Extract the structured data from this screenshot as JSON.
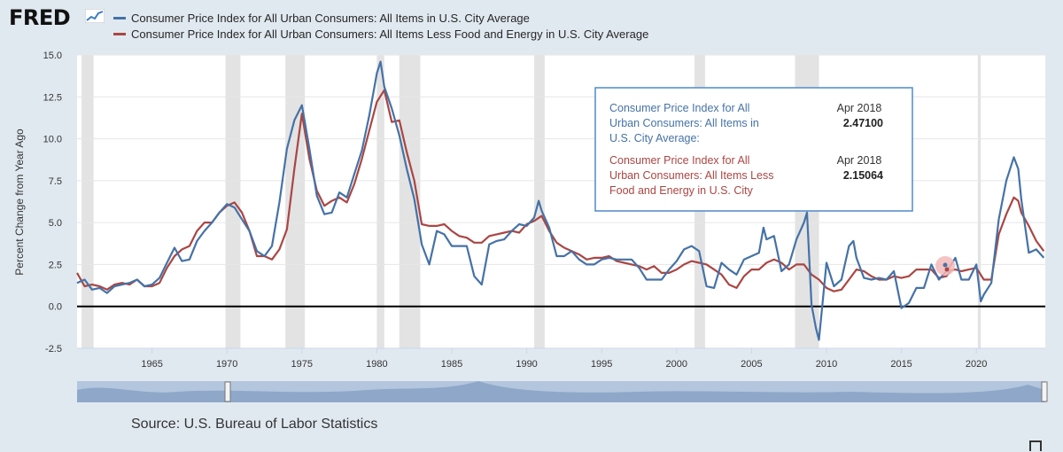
{
  "brand": {
    "name": "FRED"
  },
  "legend": [
    {
      "label": "Consumer Price Index for All Urban Consumers: All Items in U.S. City Average",
      "color": "#4572a7"
    },
    {
      "label": "Consumer Price Index for All Urban Consumers: All Items Less Food and Energy in U.S. City Average",
      "color": "#aa4643"
    }
  ],
  "source": "Source: U.S. Bureau of Labor Statistics",
  "tooltip": {
    "rows": [
      {
        "label": "Consumer Price Index for All Urban Consumers: All Items in U.S. City Average:",
        "date": "Apr 2018",
        "value": "2.47100",
        "color": "#4572a7"
      },
      {
        "label": "Consumer Price Index for All Urban Consumers: All Items Less Food and Energy in U.S. City Average:",
        "date": "Apr 2018",
        "value": "2.15064",
        "color": "#aa4643"
      }
    ]
  },
  "chart_data": {
    "type": "line",
    "title": "",
    "xlabel": "",
    "ylabel": "Percent Change from Year Ago",
    "xlim": [
      1960,
      2024.6
    ],
    "ylim": [
      -2.5,
      15
    ],
    "yticks": [
      -2.5,
      0.0,
      2.5,
      5.0,
      7.5,
      10.0,
      12.5,
      15.0
    ],
    "ytick_labels": [
      "-2.5",
      "0.0",
      "2.5",
      "5.0",
      "7.5",
      "10.0",
      "12.5",
      "15.0"
    ],
    "xticks": [
      1965,
      1970,
      1975,
      1980,
      1985,
      1990,
      1995,
      2000,
      2005,
      2010,
      2015,
      2020
    ],
    "xtick_labels": [
      "1965",
      "1970",
      "1975",
      "1980",
      "1985",
      "1990",
      "1995",
      "2000",
      "2005",
      "2010",
      "2015",
      "2020"
    ],
    "recessions": [
      [
        1960.3,
        1961.1
      ],
      [
        1969.9,
        1970.9
      ],
      [
        1973.9,
        1975.2
      ],
      [
        1980.0,
        1980.5
      ],
      [
        1981.5,
        1982.9
      ],
      [
        1990.5,
        1991.2
      ],
      [
        2001.2,
        2001.9
      ],
      [
        2007.9,
        2009.5
      ],
      [
        2020.1,
        2020.3
      ]
    ],
    "zero_line": 0,
    "series": [
      {
        "name": "Consumer Price Index for All Urban Consumers: All Items in U.S. City Average",
        "color": "#4572a7",
        "x": [
          1960.0,
          1960.5,
          1961.0,
          1961.5,
          1962.0,
          1962.5,
          1963.0,
          1963.5,
          1964.0,
          1964.5,
          1965.0,
          1965.5,
          1966.0,
          1966.5,
          1967.0,
          1967.5,
          1968.0,
          1968.5,
          1969.0,
          1969.5,
          1970.0,
          1970.5,
          1971.0,
          1971.5,
          1972.0,
          1972.5,
          1973.0,
          1973.5,
          1974.0,
          1974.5,
          1975.0,
          1975.5,
          1976.0,
          1976.5,
          1977.0,
          1977.5,
          1978.0,
          1978.5,
          1979.0,
          1979.5,
          1980.0,
          1980.25,
          1980.5,
          1981.0,
          1981.5,
          1982.0,
          1982.5,
          1983.0,
          1983.5,
          1984.0,
          1984.5,
          1985.0,
          1985.5,
          1986.0,
          1986.5,
          1987.0,
          1987.5,
          1988.0,
          1988.5,
          1989.0,
          1989.5,
          1990.0,
          1990.5,
          1990.8,
          1991.0,
          1991.5,
          1992.0,
          1992.5,
          1993.0,
          1993.5,
          1994.0,
          1994.5,
          1995.0,
          1995.5,
          1996.0,
          1996.5,
          1997.0,
          1997.5,
          1998.0,
          1998.5,
          1999.0,
          1999.5,
          2000.0,
          2000.5,
          2001.0,
          2001.5,
          2002.0,
          2002.5,
          2003.0,
          2003.5,
          2004.0,
          2004.5,
          2005.0,
          2005.5,
          2005.8,
          2006.0,
          2006.5,
          2007.0,
          2007.5,
          2008.0,
          2008.5,
          2008.7,
          2009.0,
          2009.3,
          2009.5,
          2010.0,
          2010.5,
          2011.0,
          2011.5,
          2011.8,
          2012.0,
          2012.5,
          2013.0,
          2013.5,
          2014.0,
          2014.5,
          2015.0,
          2015.5,
          2016.0,
          2016.5,
          2017.0,
          2017.5,
          2018.0,
          2018.3,
          2018.6,
          2019.0,
          2019.5,
          2020.0,
          2020.3,
          2020.5,
          2021.0,
          2021.5,
          2022.0,
          2022.5,
          2022.8,
          2023.0,
          2023.5,
          2024.0,
          2024.5
        ],
        "y": [
          1.4,
          1.6,
          1.0,
          1.1,
          0.8,
          1.2,
          1.3,
          1.4,
          1.6,
          1.2,
          1.3,
          1.7,
          2.6,
          3.5,
          2.7,
          2.8,
          3.9,
          4.5,
          5.0,
          5.6,
          6.1,
          5.9,
          5.2,
          4.5,
          3.3,
          3.0,
          3.6,
          6.2,
          9.4,
          11.1,
          12.0,
          9.4,
          6.6,
          5.5,
          5.6,
          6.8,
          6.5,
          7.9,
          9.3,
          11.4,
          13.9,
          14.6,
          13.1,
          11.8,
          10.2,
          8.2,
          6.4,
          3.7,
          2.5,
          4.5,
          4.3,
          3.6,
          3.6,
          3.6,
          1.8,
          1.3,
          3.7,
          3.9,
          4.0,
          4.5,
          4.9,
          4.8,
          5.3,
          6.3,
          5.7,
          4.7,
          3.0,
          3.0,
          3.3,
          2.8,
          2.5,
          2.5,
          2.8,
          2.9,
          2.8,
          2.8,
          2.8,
          2.3,
          1.6,
          1.6,
          1.6,
          2.2,
          2.7,
          3.4,
          3.6,
          3.3,
          1.2,
          1.1,
          2.6,
          2.2,
          1.9,
          2.8,
          3.0,
          3.2,
          4.7,
          4.0,
          4.2,
          2.1,
          2.5,
          4.0,
          5.0,
          5.6,
          0.1,
          -1.3,
          -2.0,
          2.6,
          1.2,
          1.6,
          3.6,
          3.9,
          2.9,
          1.7,
          1.6,
          1.7,
          1.6,
          2.1,
          -0.1,
          0.2,
          1.1,
          1.1,
          2.5,
          1.6,
          2.1,
          2.47,
          2.9,
          1.6,
          1.6,
          2.5,
          0.3,
          0.7,
          1.4,
          5.2,
          7.5,
          8.9,
          8.2,
          6.4,
          3.2,
          3.4,
          2.9
        ]
      },
      {
        "name": "Consumer Price Index for All Urban Consumers: All Items Less Food and Energy in U.S. City Average",
        "color": "#aa4643",
        "x": [
          1960.0,
          1960.5,
          1961.0,
          1961.5,
          1962.0,
          1962.5,
          1963.0,
          1963.5,
          1964.0,
          1964.5,
          1965.0,
          1965.5,
          1966.0,
          1966.5,
          1967.0,
          1967.5,
          1968.0,
          1968.5,
          1969.0,
          1969.5,
          1970.0,
          1970.5,
          1971.0,
          1971.5,
          1972.0,
          1972.5,
          1973.0,
          1973.5,
          1974.0,
          1974.5,
          1975.0,
          1975.5,
          1976.0,
          1976.5,
          1977.0,
          1977.5,
          1978.0,
          1978.5,
          1979.0,
          1979.5,
          1980.0,
          1980.5,
          1981.0,
          1981.5,
          1982.0,
          1982.5,
          1983.0,
          1983.5,
          1984.0,
          1984.5,
          1985.0,
          1985.5,
          1986.0,
          1986.5,
          1987.0,
          1987.5,
          1988.0,
          1988.5,
          1989.0,
          1989.5,
          1990.0,
          1990.5,
          1991.0,
          1991.5,
          1992.0,
          1992.5,
          1993.0,
          1993.5,
          1994.0,
          1994.5,
          1995.0,
          1995.5,
          1996.0,
          1996.5,
          1997.0,
          1997.5,
          1998.0,
          1998.5,
          1999.0,
          1999.5,
          2000.0,
          2000.5,
          2001.0,
          2001.5,
          2002.0,
          2002.5,
          2003.0,
          2003.5,
          2004.0,
          2004.5,
          2005.0,
          2005.5,
          2006.0,
          2006.5,
          2007.0,
          2007.5,
          2008.0,
          2008.5,
          2009.0,
          2009.5,
          2010.0,
          2010.5,
          2011.0,
          2011.5,
          2012.0,
          2012.5,
          2013.0,
          2013.5,
          2014.0,
          2014.5,
          2015.0,
          2015.5,
          2016.0,
          2016.5,
          2017.0,
          2017.5,
          2018.0,
          2018.3,
          2018.6,
          2019.0,
          2019.5,
          2020.0,
          2020.5,
          2021.0,
          2021.5,
          2022.0,
          2022.5,
          2022.8,
          2023.0,
          2023.5,
          2024.0,
          2024.5
        ],
        "y": [
          2.0,
          1.2,
          1.3,
          1.2,
          1.0,
          1.3,
          1.4,
          1.3,
          1.6,
          1.2,
          1.2,
          1.4,
          2.3,
          3.0,
          3.4,
          3.6,
          4.5,
          5.0,
          5.0,
          5.6,
          6.0,
          6.2,
          5.6,
          4.5,
          3.0,
          3.0,
          2.8,
          3.4,
          4.6,
          8.2,
          11.5,
          8.8,
          6.9,
          6.0,
          6.3,
          6.5,
          6.2,
          7.3,
          8.8,
          10.5,
          12.2,
          12.9,
          11.0,
          11.1,
          9.2,
          7.5,
          4.9,
          4.8,
          4.8,
          4.9,
          4.5,
          4.2,
          4.1,
          3.8,
          3.8,
          4.2,
          4.3,
          4.4,
          4.5,
          4.4,
          4.9,
          5.1,
          5.4,
          4.5,
          3.8,
          3.5,
          3.3,
          3.1,
          2.8,
          2.9,
          2.9,
          3.0,
          2.7,
          2.6,
          2.5,
          2.4,
          2.2,
          2.4,
          2.0,
          2.0,
          2.2,
          2.5,
          2.7,
          2.6,
          2.5,
          2.2,
          1.9,
          1.3,
          1.1,
          1.8,
          2.2,
          2.2,
          2.6,
          2.8,
          2.6,
          2.2,
          2.5,
          2.5,
          1.9,
          1.6,
          1.1,
          0.9,
          1.0,
          1.6,
          2.2,
          2.1,
          1.8,
          1.6,
          1.6,
          1.8,
          1.7,
          1.8,
          2.2,
          2.2,
          2.2,
          1.7,
          1.8,
          2.15,
          2.2,
          2.1,
          2.2,
          2.3,
          1.6,
          1.6,
          4.3,
          5.5,
          6.5,
          6.3,
          5.6,
          4.8,
          3.9,
          3.3
        ]
      }
    ]
  }
}
